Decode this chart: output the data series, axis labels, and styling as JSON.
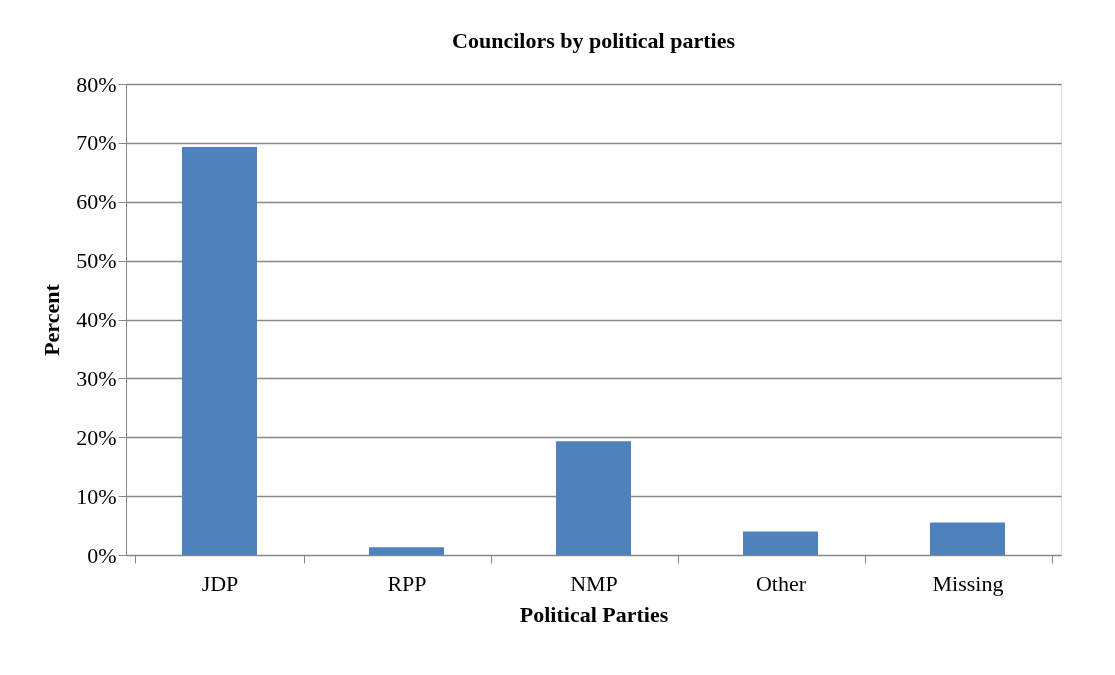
{
  "chart_data": {
    "type": "bar",
    "title": "Councilors by political parties",
    "xlabel": "Political Parties",
    "ylabel": "Percent",
    "categories": [
      "JDP",
      "RPP",
      "NMP",
      "Other",
      "Missing"
    ],
    "values": [
      69.3,
      1.3,
      19.3,
      4.0,
      5.5
    ],
    "color": "#4f81bd",
    "ylim": [
      0,
      80
    ],
    "yticks": [
      {
        "value": 0,
        "label": "0%"
      },
      {
        "value": 10,
        "label": "10%"
      },
      {
        "value": 20,
        "label": "20%"
      },
      {
        "value": 30,
        "label": "30%"
      },
      {
        "value": 40,
        "label": "40%"
      },
      {
        "value": 50,
        "label": "50%"
      },
      {
        "value": 60,
        "label": "60%"
      },
      {
        "value": 70,
        "label": "70%"
      },
      {
        "value": 80,
        "label": "80%"
      }
    ],
    "grid": "y"
  }
}
